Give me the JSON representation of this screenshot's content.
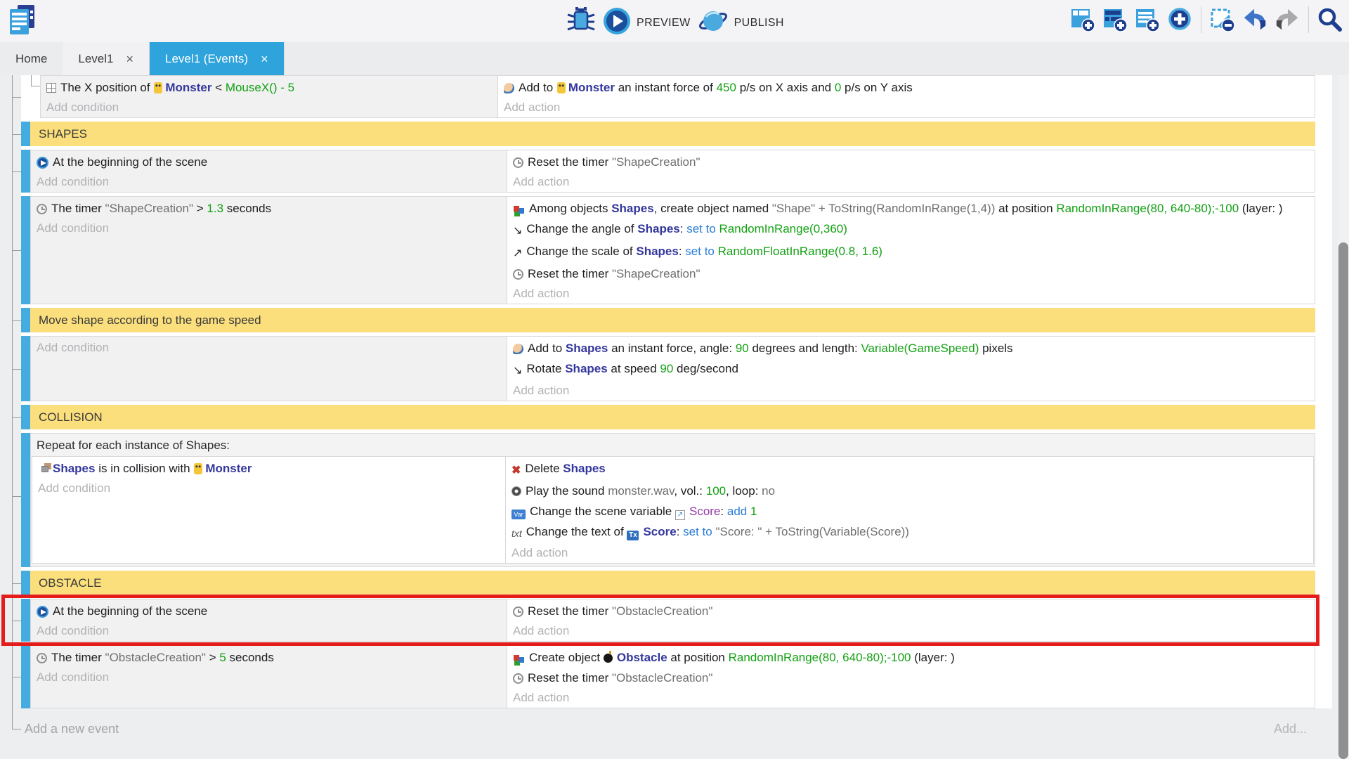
{
  "toolbar": {
    "preview_label": "PREVIEW",
    "publish_label": "PUBLISH",
    "left_icons": [
      "app-logo-icon"
    ],
    "center_icons": [
      "debug-icon",
      "play-icon",
      "globe-icon"
    ],
    "right_icons": [
      "add-event-icon",
      "add-subevent-icon",
      "add-comment-icon",
      "add-circle-icon",
      "delete-selection-icon",
      "undo-icon",
      "redo-icon",
      "search-icon"
    ]
  },
  "tabs": [
    {
      "label": "Home",
      "active": false,
      "closable": false
    },
    {
      "label": "Level1",
      "active": false,
      "closable": true
    },
    {
      "label": "Level1 (Events)",
      "active": true,
      "closable": true
    }
  ],
  "labels": {
    "add_condition": "Add condition",
    "add_action": "Add action",
    "close_glyph": "×"
  },
  "footer": {
    "add_event_label": "Add a new event",
    "add_more_label": "Add..."
  },
  "colors": {
    "accent_blue": "#2ea3dc",
    "event_bar_blue": "#45acdf",
    "group_header_yellow": "#fbdf7c",
    "highlight_red": "#e41c1c",
    "value_green": "#13a113",
    "keyword_blue": "#2a7cd6",
    "object_navy": "#34379c",
    "variable_purple": "#9439a8"
  },
  "events": [
    {
      "kind": "event",
      "nest": true,
      "conditions": [
        {
          "icon": "position-icon",
          "segs": [
            {
              "t": "The X position of ",
              "c": "p"
            },
            {
              "i": "monster-icon"
            },
            {
              "t": "Monster",
              "c": "o"
            },
            {
              "t": "  <  ",
              "c": "p"
            },
            {
              "t": "MouseX() - 5",
              "c": "g"
            }
          ]
        }
      ],
      "actions": [
        {
          "icon": "force-icon",
          "segs": [
            {
              "t": "Add to ",
              "c": "p"
            },
            {
              "i": "monster-icon"
            },
            {
              "t": "Monster",
              "c": "o"
            },
            {
              "t": " an instant force of ",
              "c": "p"
            },
            {
              "t": "450",
              "c": "g"
            },
            {
              "t": " p/s on X axis and ",
              "c": "p"
            },
            {
              "t": "0",
              "c": "g"
            },
            {
              "t": " p/s on Y axis",
              "c": "p"
            }
          ]
        }
      ]
    },
    {
      "kind": "header",
      "label": "SHAPES"
    },
    {
      "kind": "event",
      "conditions": [
        {
          "icon": "play-icon",
          "segs": [
            {
              "t": "At the beginning of the scene",
              "c": "p"
            }
          ]
        }
      ],
      "actions": [
        {
          "icon": "timer-icon",
          "segs": [
            {
              "t": "Reset the timer ",
              "c": "p"
            },
            {
              "t": "\"ShapeCreation\"",
              "c": "s"
            }
          ]
        }
      ]
    },
    {
      "kind": "event",
      "conditions": [
        {
          "icon": "timer-icon",
          "segs": [
            {
              "t": "The timer ",
              "c": "p"
            },
            {
              "t": "\"ShapeCreation\"",
              "c": "s"
            },
            {
              "t": "  >  ",
              "c": "p"
            },
            {
              "t": "1.3",
              "c": "g"
            },
            {
              "t": " seconds",
              "c": "p"
            }
          ]
        }
      ],
      "actions": [
        {
          "icon": "create-icon",
          "segs": [
            {
              "t": "Among objects ",
              "c": "p"
            },
            {
              "t": "Shapes",
              "c": "o"
            },
            {
              "t": ", create object named ",
              "c": "p"
            },
            {
              "t": "\"Shape\" + ToString(RandomInRange(1,4))",
              "c": "s"
            },
            {
              "t": " at position ",
              "c": "p"
            },
            {
              "t": "RandomInRange(80, 640-80);-100",
              "c": "g"
            },
            {
              "t": " (layer: )",
              "c": "p"
            }
          ]
        },
        {
          "icon": "angle-icon",
          "segs": [
            {
              "t": "Change the angle of ",
              "c": "p"
            },
            {
              "t": "Shapes",
              "c": "o"
            },
            {
              "t": ": ",
              "c": "p"
            },
            {
              "t": "set to ",
              "c": "b"
            },
            {
              "t": "RandomInRange(0,360)",
              "c": "g"
            }
          ]
        },
        {
          "icon": "scale-icon",
          "segs": [
            {
              "t": "Change the scale of ",
              "c": "p"
            },
            {
              "t": "Shapes",
              "c": "o"
            },
            {
              "t": ": ",
              "c": "p"
            },
            {
              "t": "set to ",
              "c": "b"
            },
            {
              "t": "RandomFloatInRange(0.8, 1.6)",
              "c": "g"
            }
          ]
        },
        {
          "icon": "timer-icon",
          "segs": [
            {
              "t": "Reset the timer ",
              "c": "p"
            },
            {
              "t": "\"ShapeCreation\"",
              "c": "s"
            }
          ]
        }
      ]
    },
    {
      "kind": "header",
      "label": "Move shape according to the game speed"
    },
    {
      "kind": "event",
      "conditions": [],
      "actions": [
        {
          "icon": "force-icon",
          "segs": [
            {
              "t": "Add to ",
              "c": "p"
            },
            {
              "t": "Shapes",
              "c": "o"
            },
            {
              "t": " an instant force, angle: ",
              "c": "p"
            },
            {
              "t": "90",
              "c": "g"
            },
            {
              "t": " degrees and length: ",
              "c": "p"
            },
            {
              "t": "Variable(GameSpeed)",
              "c": "g"
            },
            {
              "t": " pixels",
              "c": "p"
            }
          ]
        },
        {
          "icon": "rotate-icon",
          "segs": [
            {
              "t": "Rotate ",
              "c": "p"
            },
            {
              "t": "Shapes",
              "c": "o"
            },
            {
              "t": " at speed ",
              "c": "p"
            },
            {
              "t": "90",
              "c": "g"
            },
            {
              "t": " deg/second",
              "c": "p"
            }
          ]
        }
      ]
    },
    {
      "kind": "header",
      "label": "COLLISION"
    },
    {
      "kind": "repeat",
      "label": "Repeat for each instance of Shapes:",
      "child": {
        "conditions": [
          {
            "icon": "collision-icon",
            "segs": [
              {
                "t": "Shapes",
                "c": "o"
              },
              {
                "t": " is in collision with ",
                "c": "p"
              },
              {
                "i": "monster-icon"
              },
              {
                "t": "Monster",
                "c": "o"
              }
            ]
          }
        ],
        "actions": [
          {
            "icon": "delete-icon",
            "segs": [
              {
                "t": "Delete ",
                "c": "p"
              },
              {
                "t": "Shapes",
                "c": "o"
              }
            ]
          },
          {
            "icon": "sound-icon",
            "segs": [
              {
                "t": "Play the sound ",
                "c": "p"
              },
              {
                "t": "monster.wav",
                "c": "s"
              },
              {
                "t": ", vol.: ",
                "c": "p"
              },
              {
                "t": "100",
                "c": "g"
              },
              {
                "t": ", loop: ",
                "c": "p"
              },
              {
                "t": "no",
                "c": "s"
              }
            ]
          },
          {
            "icon": "variable-icon",
            "segs": [
              {
                "t": "Change the scene variable ",
                "c": "p"
              },
              {
                "i": "variable-ref-icon"
              },
              {
                "t": "Score",
                "c": "v"
              },
              {
                "t": ": ",
                "c": "p"
              },
              {
                "t": "add ",
                "c": "b"
              },
              {
                "t": "1",
                "c": "g"
              }
            ]
          },
          {
            "icon": "text-icon",
            "segs": [
              {
                "t": "Change the text of ",
                "c": "p"
              },
              {
                "i": "text-object-icon"
              },
              {
                "t": "Score",
                "c": "o"
              },
              {
                "t": ": ",
                "c": "p"
              },
              {
                "t": "set to ",
                "c": "b"
              },
              {
                "t": "\"Score: \" + ToString(Variable(Score))",
                "c": "s"
              }
            ]
          }
        ]
      }
    },
    {
      "kind": "header",
      "label": "OBSTACLE"
    },
    {
      "kind": "event",
      "highlight": true,
      "conditions": [
        {
          "icon": "play-icon",
          "segs": [
            {
              "t": "At the beginning of the scene",
              "c": "p"
            }
          ]
        }
      ],
      "actions": [
        {
          "icon": "timer-icon",
          "segs": [
            {
              "t": "Reset the timer ",
              "c": "p"
            },
            {
              "t": "\"ObstacleCreation\"",
              "c": "s"
            }
          ]
        }
      ]
    },
    {
      "kind": "event",
      "conditions": [
        {
          "icon": "timer-icon",
          "segs": [
            {
              "t": "The timer ",
              "c": "p"
            },
            {
              "t": "\"ObstacleCreation\"",
              "c": "s"
            },
            {
              "t": "  >  ",
              "c": "p"
            },
            {
              "t": "5",
              "c": "g"
            },
            {
              "t": " seconds",
              "c": "p"
            }
          ]
        }
      ],
      "actions": [
        {
          "icon": "create-icon",
          "segs": [
            {
              "t": "Create object ",
              "c": "p"
            },
            {
              "i": "bomb-icon"
            },
            {
              "t": "Obstacle",
              "c": "o"
            },
            {
              "t": " at position ",
              "c": "p"
            },
            {
              "t": "RandomInRange(80, 640-80);-100",
              "c": "g"
            },
            {
              "t": " (layer: )",
              "c": "p"
            }
          ]
        },
        {
          "icon": "timer-icon",
          "segs": [
            {
              "t": "Reset the timer ",
              "c": "p"
            },
            {
              "t": "\"ObstacleCreation\"",
              "c": "s"
            }
          ]
        }
      ]
    }
  ]
}
